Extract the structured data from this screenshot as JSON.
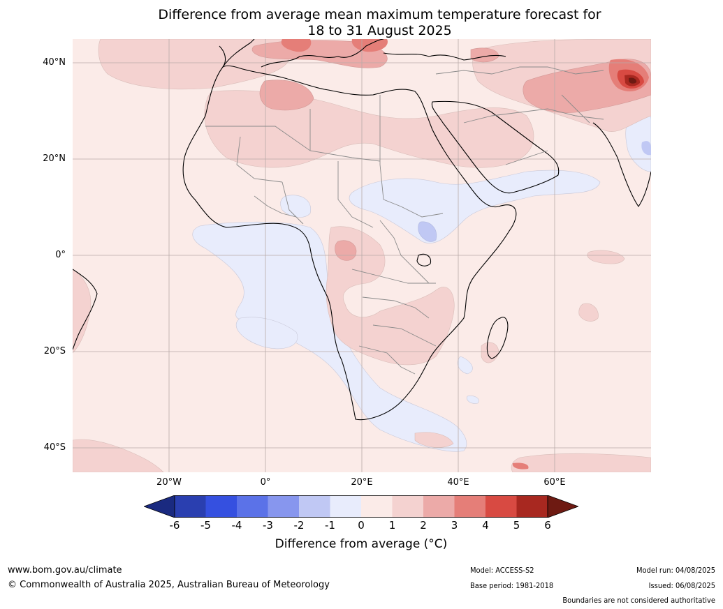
{
  "title": {
    "line1": "Difference from average mean maximum temperature forecast for",
    "line2": "18 to 31 August 2025"
  },
  "map": {
    "lat_labels": [
      "40°N",
      "20°N",
      "0°",
      "20°S",
      "40°S"
    ],
    "lon_labels": [
      "20°W",
      "0°",
      "20°E",
      "40°E",
      "60°E"
    ]
  },
  "colorbar": {
    "ticks": [
      "-6",
      "-5",
      "-4",
      "-3",
      "-2",
      "-1",
      "0",
      "1",
      "2",
      "3",
      "4",
      "5",
      "6"
    ],
    "colors": [
      "#1a2a80",
      "#2a3fb0",
      "#3550e0",
      "#5b72e8",
      "#8796ee",
      "#c0c8f4",
      "#e8ecfc",
      "#fbebe8",
      "#f4d2d0",
      "#ecaaa8",
      "#e57e78",
      "#d84a42",
      "#a82820",
      "#6e1a12"
    ],
    "label": "Difference from average (°C)"
  },
  "footer": {
    "website": "www.bom.gov.au/climate",
    "copyright": "© Commonwealth of Australia 2025, Australian Bureau of Meteorology",
    "model": "Model: ACCESS-S2",
    "base_period": "Base period: 1981-2018",
    "model_run": "Model run: 04/08/2025",
    "issued": "Issued: 06/08/2025",
    "boundaries": "Boundaries are not considered authoritative"
  }
}
